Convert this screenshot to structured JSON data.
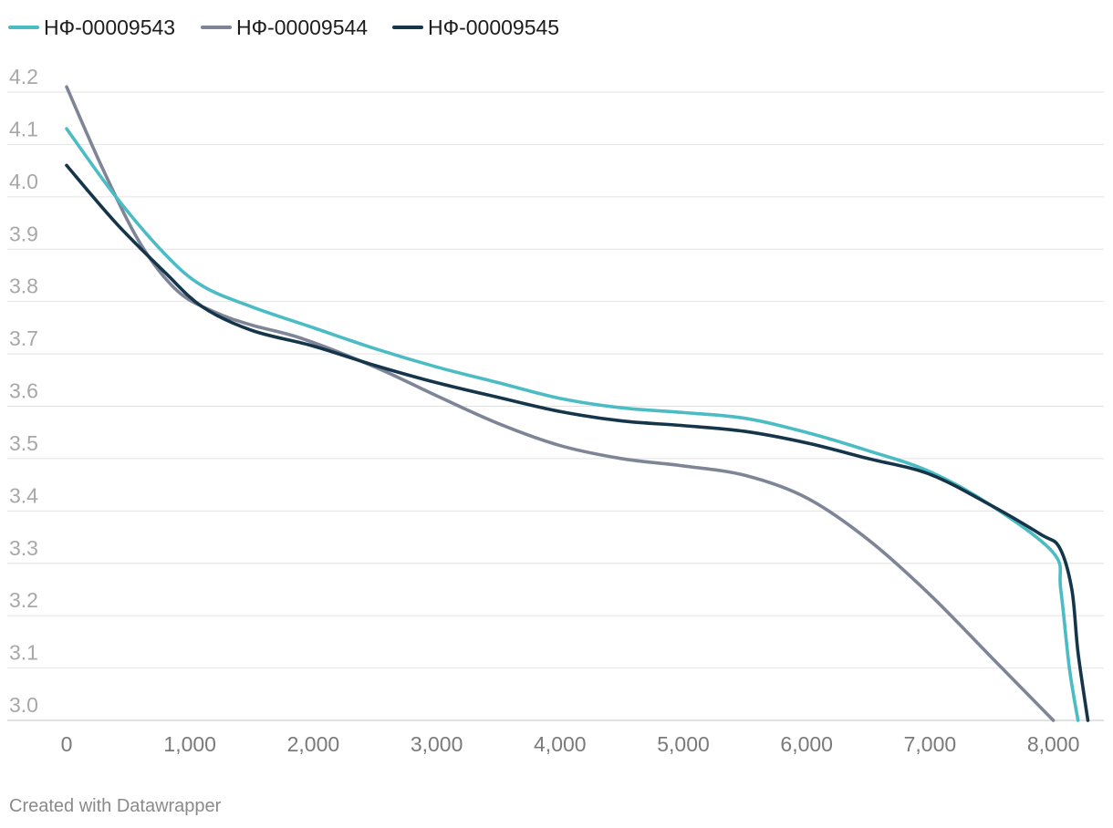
{
  "chart_data": {
    "type": "line",
    "title": "",
    "xlabel": "",
    "ylabel": "",
    "xlim": [
      0,
      8300
    ],
    "ylim": [
      3.0,
      4.2
    ],
    "x_ticks": [
      0,
      1000,
      2000,
      3000,
      4000,
      5000,
      6000,
      7000,
      8000
    ],
    "x_tick_labels": [
      "0",
      "1,000",
      "2,000",
      "3,000",
      "4,000",
      "5,000",
      "6,000",
      "7,000",
      "8,000"
    ],
    "y_ticks": [
      3.0,
      3.1,
      3.2,
      3.3,
      3.4,
      3.5,
      3.6,
      3.7,
      3.8,
      3.9,
      4.0,
      4.1,
      4.2
    ],
    "y_tick_labels": [
      "3.0",
      "3.1",
      "3.2",
      "3.3",
      "3.4",
      "3.5",
      "3.6",
      "3.7",
      "3.8",
      "3.9",
      "4.0",
      "4.1",
      "4.2"
    ],
    "grid": true,
    "legend_position": "top-left",
    "series": [
      {
        "name": "НФ-00009543",
        "color": "#4bbcc4",
        "points": [
          [
            0,
            4.13
          ],
          [
            400,
            4.0
          ],
          [
            800,
            3.89
          ],
          [
            1100,
            3.83
          ],
          [
            1500,
            3.79
          ],
          [
            2000,
            3.75
          ],
          [
            2500,
            3.71
          ],
          [
            3000,
            3.675
          ],
          [
            3500,
            3.645
          ],
          [
            4000,
            3.615
          ],
          [
            4500,
            3.597
          ],
          [
            5000,
            3.588
          ],
          [
            5500,
            3.577
          ],
          [
            6000,
            3.55
          ],
          [
            6500,
            3.515
          ],
          [
            7000,
            3.475
          ],
          [
            7500,
            3.41
          ],
          [
            8000,
            3.32
          ],
          [
            8060,
            3.25
          ],
          [
            8130,
            3.1
          ],
          [
            8200,
            3.0
          ]
        ]
      },
      {
        "name": "НФ-00009544",
        "color": "#7d8596",
        "points": [
          [
            0,
            4.21
          ],
          [
            300,
            4.05
          ],
          [
            600,
            3.91
          ],
          [
            900,
            3.82
          ],
          [
            1200,
            3.78
          ],
          [
            1500,
            3.755
          ],
          [
            1900,
            3.73
          ],
          [
            2500,
            3.675
          ],
          [
            3000,
            3.62
          ],
          [
            3500,
            3.567
          ],
          [
            4000,
            3.525
          ],
          [
            4500,
            3.5
          ],
          [
            5000,
            3.486
          ],
          [
            5500,
            3.468
          ],
          [
            6000,
            3.425
          ],
          [
            6500,
            3.345
          ],
          [
            7000,
            3.24
          ],
          [
            7500,
            3.12
          ],
          [
            8000,
            3.0
          ]
        ]
      },
      {
        "name": "НФ-00009545",
        "color": "#15354a",
        "points": [
          [
            0,
            4.06
          ],
          [
            400,
            3.95
          ],
          [
            800,
            3.855
          ],
          [
            1100,
            3.79
          ],
          [
            1500,
            3.745
          ],
          [
            2000,
            3.715
          ],
          [
            2500,
            3.678
          ],
          [
            3000,
            3.645
          ],
          [
            3500,
            3.617
          ],
          [
            4000,
            3.59
          ],
          [
            4500,
            3.572
          ],
          [
            5000,
            3.563
          ],
          [
            5500,
            3.552
          ],
          [
            6000,
            3.53
          ],
          [
            6500,
            3.5
          ],
          [
            7000,
            3.47
          ],
          [
            7500,
            3.41
          ],
          [
            7900,
            3.355
          ],
          [
            8050,
            3.33
          ],
          [
            8150,
            3.25
          ],
          [
            8200,
            3.13
          ],
          [
            8280,
            3.0
          ]
        ]
      }
    ]
  },
  "footer": {
    "credit": "Created with Datawrapper"
  }
}
